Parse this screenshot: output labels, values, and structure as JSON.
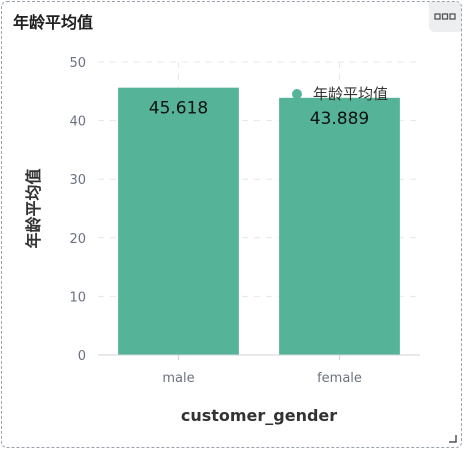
{
  "panel": {
    "title": "年龄平均值",
    "menu_icon": "more-horizontal-icon"
  },
  "chart_data": {
    "type": "bar",
    "categories": [
      "male",
      "female"
    ],
    "series": [
      {
        "name": "年龄平均值",
        "values": [
          45.618,
          43.889
        ],
        "color": "#55b497"
      }
    ],
    "data_labels": [
      "45.618",
      "43.889"
    ],
    "xlabel": "customer_gender",
    "ylabel": "年龄平均值",
    "ylim": [
      0,
      50
    ],
    "yticks": [
      0,
      10,
      20,
      30,
      40,
      50
    ],
    "grid": true,
    "legend": "top-right"
  }
}
